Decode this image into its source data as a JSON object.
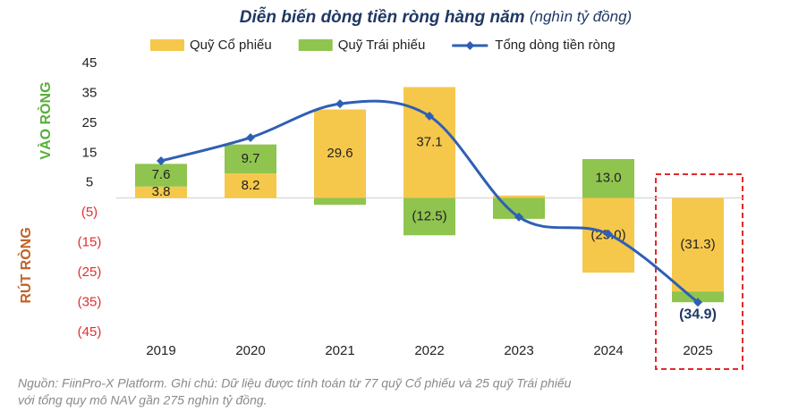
{
  "chart_data": {
    "type": "stacked-bar-line",
    "title": "Diễn biến dòng tiền ròng hàng năm",
    "unit": "(nghìn tỷ đồng)",
    "categories": [
      "2019",
      "2020",
      "2021",
      "2022",
      "2023",
      "2024",
      "2025"
    ],
    "series": [
      {
        "name": "Quỹ Cổ phiếu",
        "type": "bar",
        "color": "#f5c84c",
        "values": [
          3.8,
          8.2,
          29.6,
          37.1,
          0.8,
          -25.0,
          -31.3
        ],
        "value_labels": [
          "3.8",
          "8.2",
          "29.6",
          "37.1",
          null,
          "(25.0)",
          "(31.3)"
        ]
      },
      {
        "name": "Quỹ Trái phiếu",
        "type": "bar",
        "color": "#8fc44f",
        "values": [
          7.6,
          9.7,
          -2.3,
          -12.5,
          -7.0,
          13.0,
          -3.6
        ],
        "value_labels": [
          "7.6",
          "9.7",
          null,
          "(12.5)",
          null,
          "13.0",
          null
        ]
      },
      {
        "name": "Tổng dòng tiền ròng",
        "type": "line",
        "color": "#2f5fb5",
        "values": [
          12.4,
          20.2,
          31.5,
          27.4,
          -6.4,
          -12.1,
          -34.9
        ],
        "value_labels": [
          null,
          null,
          null,
          null,
          null,
          null,
          "(34.9)"
        ]
      }
    ],
    "ylim": [
      -45,
      45
    ],
    "yticks": [
      {
        "value": -45,
        "label": "(45)"
      },
      {
        "value": -35,
        "label": "(35)"
      },
      {
        "value": -25,
        "label": "(25)"
      },
      {
        "value": -15,
        "label": "(15)"
      },
      {
        "value": -5,
        "label": "(5)"
      },
      5,
      15,
      25,
      35,
      45
    ],
    "annotations": [
      "VÀO RÒNG",
      "RÚT RÒNG"
    ],
    "source": [
      "Nguồn: FiinPro-X Platform. Ghi chú: Dữ liệu được tính toán từ 77 quỹ Cổ phiếu và 25 quỹ Trái phiếu",
      "với tổng quy mô NAV gần 275 nghìn tỷ đồng."
    ]
  }
}
